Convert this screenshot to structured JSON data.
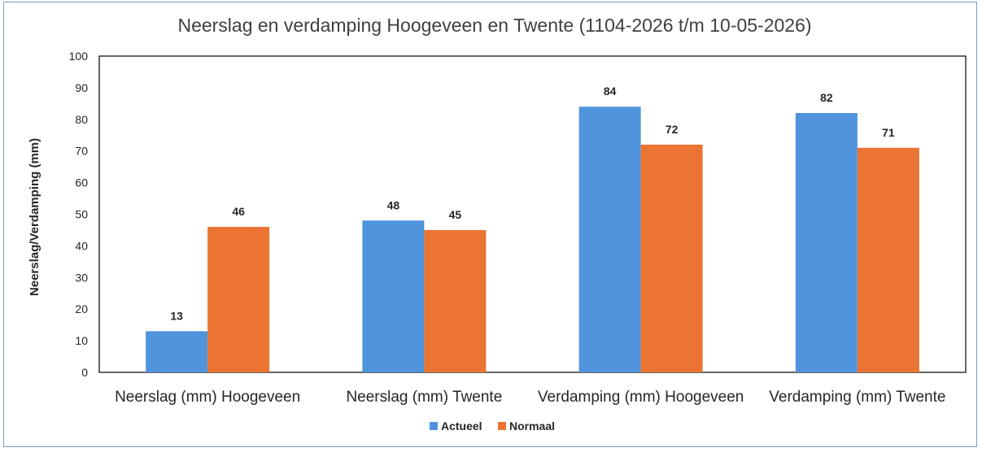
{
  "chart_data": {
    "type": "bar",
    "title": "Neerslag en verdamping Hoogeveen en Twente (1104-2026 t/m 10-05-2026)",
    "ylabel": "Neerslag/Verdamping (mm)",
    "xlabel": "",
    "ylim": [
      0,
      100
    ],
    "yticks": [
      0,
      10,
      20,
      30,
      40,
      50,
      60,
      70,
      80,
      90,
      100
    ],
    "categories": [
      "Neerslag (mm) Hoogeveen",
      "Neerslag (mm) Twente",
      "Verdamping (mm) Hoogeveen",
      "Verdamping (mm) Twente"
    ],
    "series": [
      {
        "name": "Actueel",
        "color": "#4f94dc",
        "values": [
          13,
          48,
          84,
          82
        ]
      },
      {
        "name": "Normaal",
        "color": "#eb7433",
        "values": [
          46,
          45,
          72,
          71
        ]
      }
    ],
    "grid": false,
    "legend": "bottom"
  }
}
